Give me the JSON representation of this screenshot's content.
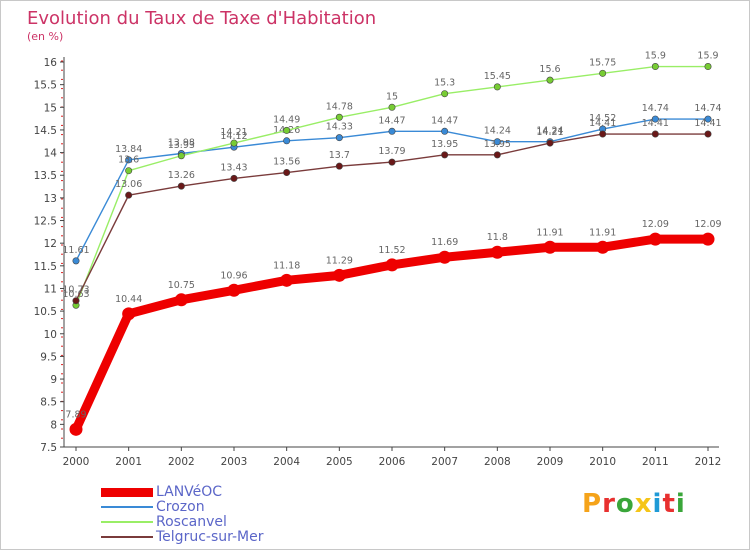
{
  "title": "Evolution du Taux de Taxe d'Habitation",
  "unit_label": "(en %)",
  "logo": {
    "text": "Proxiti",
    "colors": [
      "#f5a31a",
      "#e8302f",
      "#3aa63a",
      "#f5c518",
      "#1f9ad6",
      "#e8302f",
      "#3aa63a"
    ]
  },
  "chart_data": {
    "type": "line",
    "title": "Evolution du Taux de Taxe d'Habitation",
    "ylabel": "(en %)",
    "xlabel": "",
    "x": [
      "2000",
      "2001",
      "2002",
      "2003",
      "2004",
      "2005",
      "2006",
      "2007",
      "2008",
      "2009",
      "2010",
      "2011",
      "2012"
    ],
    "ylim": [
      7.5,
      16
    ],
    "yticks": [
      "7.5",
      "8",
      "8.5",
      "9",
      "9.5",
      "10",
      "10.5",
      "11",
      "11.5",
      "12",
      "12.5",
      "13",
      "13.5",
      "14",
      "14.5",
      "15",
      "15.5",
      "16"
    ],
    "grid": false,
    "legend_position": "bottom-left",
    "series": [
      {
        "name": "LANVéOC",
        "color": "#ee0000",
        "bold": true,
        "values": [
          7.89,
          10.44,
          10.75,
          10.96,
          11.18,
          11.29,
          11.52,
          11.69,
          11.8,
          11.91,
          11.91,
          12.09,
          12.09
        ],
        "labels": [
          "7.89",
          "10.44",
          "10.75",
          "10.96",
          "11.18",
          "11.29",
          "11.52",
          "11.69",
          "11.8",
          "11.91",
          "11.91",
          "12.09",
          "12.09"
        ]
      },
      {
        "name": "Crozon",
        "color": "#3a8ad6",
        "marker": "#3a8ad6",
        "bold": false,
        "values": [
          11.61,
          13.84,
          13.98,
          14.12,
          14.26,
          14.33,
          14.47,
          14.47,
          14.24,
          14.24,
          14.52,
          14.74,
          14.74
        ],
        "labels": [
          "11.61",
          "13.84",
          "13.98",
          "14.12",
          "14.26",
          "14.33",
          "14.47",
          "14.47",
          "14.24",
          "14.24",
          "14.52",
          "14.74",
          "14.74"
        ]
      },
      {
        "name": "Roscanvel",
        "color": "#99ee66",
        "marker": "#77cc33",
        "bold": false,
        "values": [
          10.63,
          13.6,
          13.93,
          14.21,
          14.49,
          14.78,
          15,
          15.3,
          15.45,
          15.6,
          15.75,
          15.9,
          15.9
        ],
        "labels": [
          "10.63",
          "13.6",
          "13.93",
          "14.21",
          "14.49",
          "14.78",
          "15",
          "15.3",
          "15.45",
          "15.6",
          "15.75",
          "15.9",
          "15.9"
        ]
      },
      {
        "name": "Telgruc-sur-Mer",
        "color": "#7a3b3b",
        "marker": "#6a1818",
        "bold": false,
        "values": [
          10.73,
          13.06,
          13.26,
          13.43,
          13.56,
          13.7,
          13.79,
          13.95,
          13.95,
          14.21,
          14.41,
          14.41,
          14.41
        ],
        "labels": [
          "10.73",
          "13.06",
          "13.26",
          "13.43",
          "13.56",
          "13.7",
          "13.79",
          "13.95",
          "13.95",
          "14.21",
          "14.41",
          "14.41",
          "14.41"
        ]
      }
    ]
  }
}
